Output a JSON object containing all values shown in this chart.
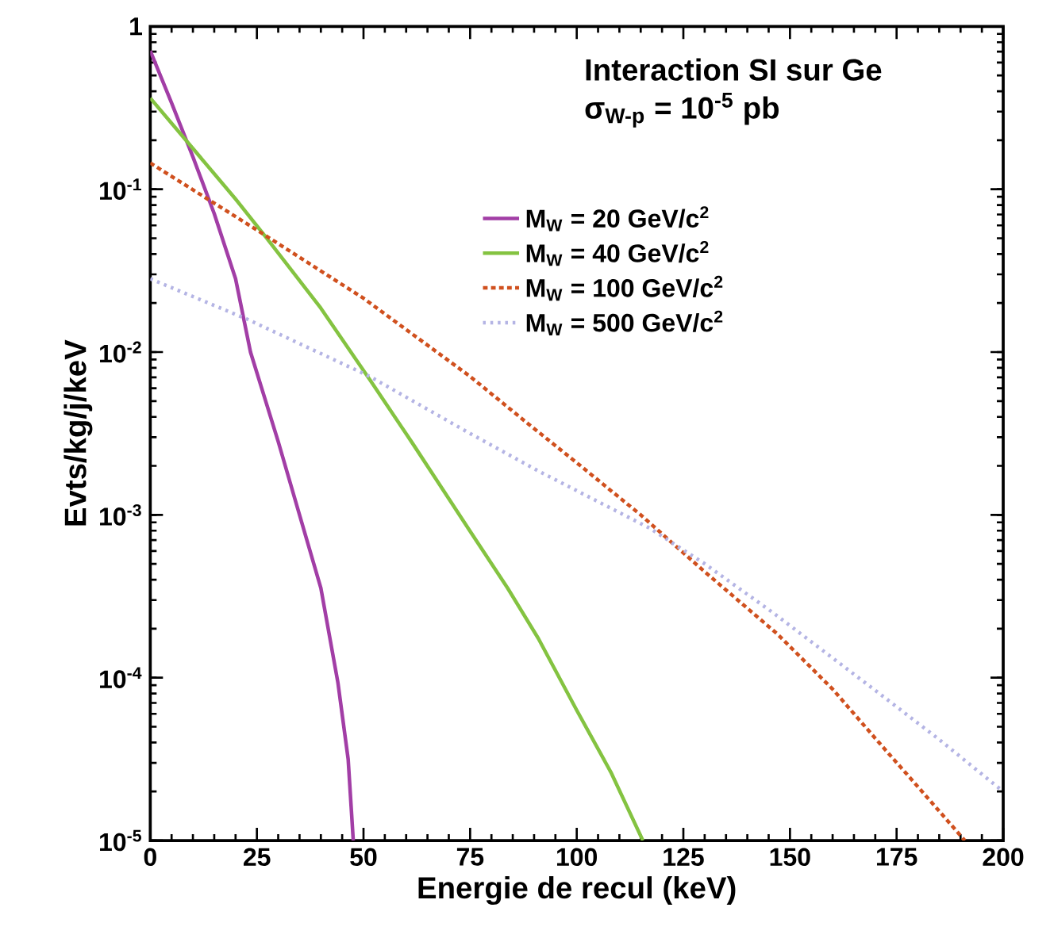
{
  "chart_data": {
    "type": "line",
    "xlabel": "Energie de recul (keV)",
    "ylabel": "Evts/kg/j/keV",
    "legend_title": "Interaction SI sur Ge",
    "subtitle": "σ$_{W-p}$ = 10$^{-5}$ pb",
    "log": "y",
    "xlim": [
      0,
      200
    ],
    "ylim": [
      1e-05,
      1
    ],
    "xticks": [
      0,
      25,
      50,
      75,
      100,
      125,
      150,
      175,
      200
    ],
    "yticks": [
      {
        "value": 1e-05,
        "label": "10$^{-5}$"
      },
      {
        "value": 0.0001,
        "label": "10$^{-4}$"
      },
      {
        "value": 0.001,
        "label": "10$^{-3}$"
      },
      {
        "value": 0.01,
        "label": "10$^{-2}$"
      },
      {
        "value": 0.1,
        "label": "10$^{-1}$"
      },
      1
    ],
    "grid": false,
    "legend": "top right",
    "marker": "none",
    "series": [
      {
        "name": "M$_{W}$ =  20 GeV/c$^{2}$",
        "color": "#a23ea6",
        "line_style": "solid",
        "x": [
          0,
          5,
          10,
          15,
          20,
          23.5,
          30,
          35,
          40,
          44,
          46.4,
          47.6
        ],
        "values": [
          0.708,
          0.339,
          0.158,
          0.0708,
          0.0282,
          0.01,
          0.00282,
          0.001,
          0.000355,
          9.33e-05,
          3.16e-05,
          1e-05
        ]
      },
      {
        "name": "M$_{W}$ =  40 GeV/c$^{2}$",
        "color": "#84c341",
        "line_style": "solid",
        "x": [
          0,
          10,
          20,
          27.3,
          40,
          51.5,
          61.5,
          67,
          75,
          83.8,
          91,
          100,
          108,
          115.5
        ],
        "values": [
          0.363,
          0.178,
          0.0871,
          0.0501,
          0.0186,
          0.00676,
          0.00275,
          0.00166,
          0.000794,
          0.000355,
          0.000174,
          6.31e-05,
          2.63e-05,
          1e-05
        ]
      },
      {
        "name": "M$_{W}$ = 100 GeV/c$^{2}$",
        "color": "#d0501e",
        "line_style": "dashed",
        "x": [
          0,
          25,
          50,
          75,
          88.6,
          100,
          115,
          129.6,
          147,
          160,
          170.6,
          180,
          191
        ],
        "values": [
          0.145,
          0.0562,
          0.0214,
          0.00708,
          0.00363,
          0.00209,
          0.001,
          0.000457,
          0.000186,
          8.51e-05,
          4.07e-05,
          2.14e-05,
          1e-05
        ]
      },
      {
        "name": "M$_{W}$ = 500 GeV/c$^{2}$",
        "color": "#b4b4e4",
        "line_style": "dotted",
        "x": [
          0,
          23,
          51.5,
          75,
          91,
          117,
          130,
          146,
          170.6,
          185,
          200
        ],
        "values": [
          0.0282,
          0.0158,
          0.00708,
          0.00316,
          0.00186,
          0.000832,
          0.000501,
          0.000251,
          8.13e-05,
          4.17e-05,
          2e-05
        ]
      }
    ]
  }
}
